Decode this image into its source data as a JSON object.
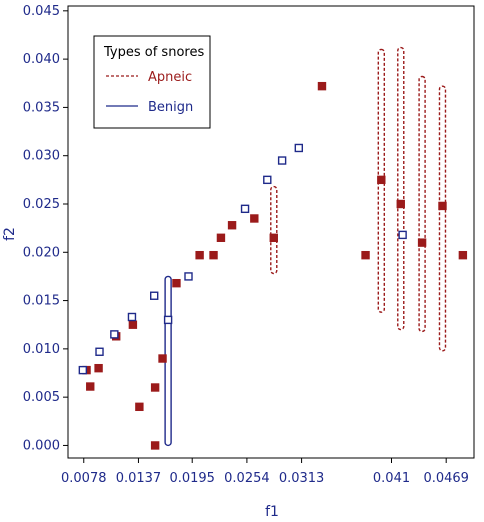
{
  "chart_data": {
    "type": "scatter",
    "xlabel": "f1",
    "ylabel": "f2",
    "xlim": [
      0.0061,
      0.0499
    ],
    "ylim": [
      -0.0013,
      0.0455
    ],
    "x_ticks": [
      "0.0078",
      "0.0137",
      "0.0195",
      "0.0254",
      "0.0313",
      "0.041",
      "0.0469"
    ],
    "x_tick_values": [
      0.0078,
      0.0137,
      0.0195,
      0.0254,
      0.0313,
      0.041,
      0.0469
    ],
    "y_ticks": [
      "0.000",
      "0.005",
      "0.010",
      "0.015",
      "0.020",
      "0.025",
      "0.030",
      "0.035",
      "0.040",
      "0.045"
    ],
    "y_tick_values": [
      0.0,
      0.005,
      0.01,
      0.015,
      0.02,
      0.025,
      0.03,
      0.035,
      0.04,
      0.045
    ],
    "grid": false,
    "legend": {
      "title": "Types of snores",
      "placement": "top-left"
    },
    "series": [
      {
        "name": "Apneic",
        "color": "#9b1b1b",
        "line_style": "dashed",
        "points": [
          {
            "x": 0.0081,
            "y": 0.0078
          },
          {
            "x": 0.0085,
            "y": 0.0061
          },
          {
            "x": 0.0094,
            "y": 0.008
          },
          {
            "x": 0.0113,
            "y": 0.0113
          },
          {
            "x": 0.0131,
            "y": 0.0125
          },
          {
            "x": 0.0138,
            "y": 0.004
          },
          {
            "x": 0.0155,
            "y": 0.006
          },
          {
            "x": 0.0155,
            "y": 0.0
          },
          {
            "x": 0.0163,
            "y": 0.009
          },
          {
            "x": 0.0178,
            "y": 0.0168
          },
          {
            "x": 0.0203,
            "y": 0.0197
          },
          {
            "x": 0.0218,
            "y": 0.0197
          },
          {
            "x": 0.0226,
            "y": 0.0215
          },
          {
            "x": 0.0238,
            "y": 0.0228
          },
          {
            "x": 0.0262,
            "y": 0.0235
          },
          {
            "x": 0.0283,
            "y": 0.0215
          },
          {
            "x": 0.0335,
            "y": 0.0372
          },
          {
            "x": 0.0382,
            "y": 0.0197
          },
          {
            "x": 0.0399,
            "y": 0.0275
          },
          {
            "x": 0.042,
            "y": 0.025
          },
          {
            "x": 0.0443,
            "y": 0.021
          },
          {
            "x": 0.0465,
            "y": 0.0248
          },
          {
            "x": 0.0487,
            "y": 0.0197
          }
        ],
        "ranges": [
          {
            "x": 0.0283,
            "y_min": 0.0178,
            "y_max": 0.0268
          },
          {
            "x": 0.0399,
            "y_min": 0.0138,
            "y_max": 0.041
          },
          {
            "x": 0.042,
            "y_min": 0.012,
            "y_max": 0.0412
          },
          {
            "x": 0.0443,
            "y_min": 0.0118,
            "y_max": 0.0382
          },
          {
            "x": 0.0465,
            "y_min": 0.0098,
            "y_max": 0.0372
          }
        ]
      },
      {
        "name": "Benign",
        "color": "#1f2a8a",
        "line_style": "solid",
        "points": [
          {
            "x": 0.0077,
            "y": 0.0078
          },
          {
            "x": 0.0095,
            "y": 0.0097
          },
          {
            "x": 0.0111,
            "y": 0.0115
          },
          {
            "x": 0.013,
            "y": 0.0133
          },
          {
            "x": 0.0154,
            "y": 0.0155
          },
          {
            "x": 0.0169,
            "y": 0.013
          },
          {
            "x": 0.0191,
            "y": 0.0175
          },
          {
            "x": 0.0252,
            "y": 0.0245
          },
          {
            "x": 0.0276,
            "y": 0.0275
          },
          {
            "x": 0.0292,
            "y": 0.0295
          },
          {
            "x": 0.031,
            "y": 0.0308
          },
          {
            "x": 0.0422,
            "y": 0.0218
          }
        ],
        "ranges": [
          {
            "x": 0.0169,
            "y_min": 0.0,
            "y_max": 0.0175
          }
        ]
      }
    ]
  }
}
